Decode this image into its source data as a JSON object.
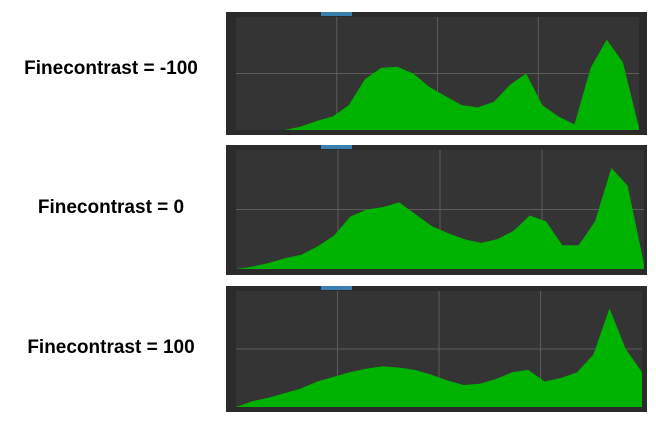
{
  "colors": {
    "panel_background": "#2b2b2b",
    "plot_background": "#343434",
    "gridline": "#5c5c5c",
    "histogram_fill": "#00b200",
    "tab_accent": "#3a7fb0",
    "label_text": "#000000"
  },
  "chart_data": [
    {
      "type": "area",
      "label": "Finecontrast = -100",
      "x": [
        0,
        4,
        8,
        12,
        16,
        20,
        24,
        28,
        32,
        36,
        40,
        44,
        48,
        52,
        56,
        60,
        64,
        68,
        72,
        76,
        80,
        84,
        88,
        92,
        96,
        100
      ],
      "values": [
        0,
        0,
        0,
        0,
        0.03,
        0.08,
        0.12,
        0.22,
        0.45,
        0.55,
        0.56,
        0.5,
        0.38,
        0.3,
        0.22,
        0.2,
        0.25,
        0.4,
        0.5,
        0.22,
        0.12,
        0.05,
        0.55,
        0.8,
        0.6,
        0.02
      ],
      "xlim": [
        0,
        100
      ],
      "ylim": [
        0,
        1
      ],
      "grid": true
    },
    {
      "type": "area",
      "label": "Finecontrast = 0",
      "x": [
        0,
        4,
        8,
        12,
        16,
        20,
        24,
        28,
        32,
        36,
        40,
        44,
        48,
        52,
        56,
        60,
        64,
        68,
        72,
        76,
        80,
        84,
        88,
        92,
        96,
        100
      ],
      "values": [
        0,
        0.02,
        0.05,
        0.09,
        0.12,
        0.19,
        0.28,
        0.44,
        0.5,
        0.52,
        0.56,
        0.46,
        0.36,
        0.3,
        0.25,
        0.22,
        0.25,
        0.32,
        0.45,
        0.4,
        0.2,
        0.2,
        0.4,
        0.85,
        0.7,
        0.04
      ],
      "xlim": [
        0,
        100
      ],
      "ylim": [
        0,
        1
      ],
      "grid": true
    },
    {
      "type": "area",
      "label": "Finecontrast = 100",
      "x": [
        0,
        4,
        8,
        12,
        16,
        20,
        24,
        28,
        32,
        36,
        40,
        44,
        48,
        52,
        56,
        60,
        64,
        68,
        72,
        76,
        80,
        84,
        88,
        92,
        96,
        100
      ],
      "values": [
        0,
        0.05,
        0.08,
        0.12,
        0.16,
        0.22,
        0.26,
        0.3,
        0.33,
        0.35,
        0.34,
        0.32,
        0.28,
        0.23,
        0.19,
        0.2,
        0.24,
        0.3,
        0.32,
        0.22,
        0.25,
        0.3,
        0.45,
        0.85,
        0.5,
        0.3
      ],
      "xlim": [
        0,
        100
      ],
      "ylim": [
        0,
        1
      ],
      "grid": true
    }
  ]
}
